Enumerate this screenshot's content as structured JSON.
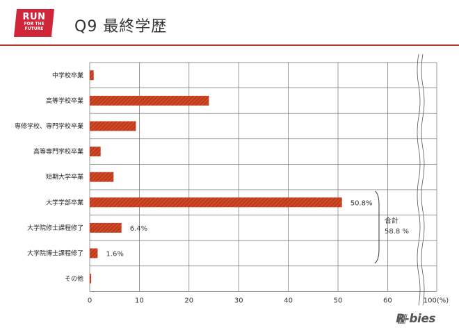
{
  "header": {
    "logo_line1": "RUN",
    "logo_line2": "FOR THE",
    "logo_line3": "FUTURE",
    "title": "Q9  最終学歴"
  },
  "footer": {
    "brand": "R-bies"
  },
  "colors": {
    "bar": "#c23a1a",
    "accent": "#c0392b",
    "grid": "#6e6e6e"
  },
  "chart_data": {
    "type": "bar",
    "orientation": "horizontal",
    "categories": [
      "中学校卒業",
      "高等学校卒業",
      "専修学校、専門学校卒業",
      "高等専門学校卒業",
      "短期大学卒業",
      "大学学部卒業",
      "大学院修士課程修了",
      "大学院博士課程修了",
      "その他"
    ],
    "values": [
      0.8,
      24.0,
      9.3,
      2.2,
      4.8,
      50.8,
      6.4,
      1.6,
      0.3
    ],
    "data_labels": [
      "",
      "",
      "",
      "",
      "",
      "50.8%",
      "6.4%",
      "1.6%",
      ""
    ],
    "x_ticks": [
      "0",
      "10",
      "20",
      "30",
      "40",
      "50",
      "60",
      "100(%)"
    ],
    "xlim": [
      0,
      100
    ],
    "axis_break_after": 60,
    "grid": true,
    "annotation": {
      "label": "合計",
      "value": "58.8 %"
    }
  }
}
